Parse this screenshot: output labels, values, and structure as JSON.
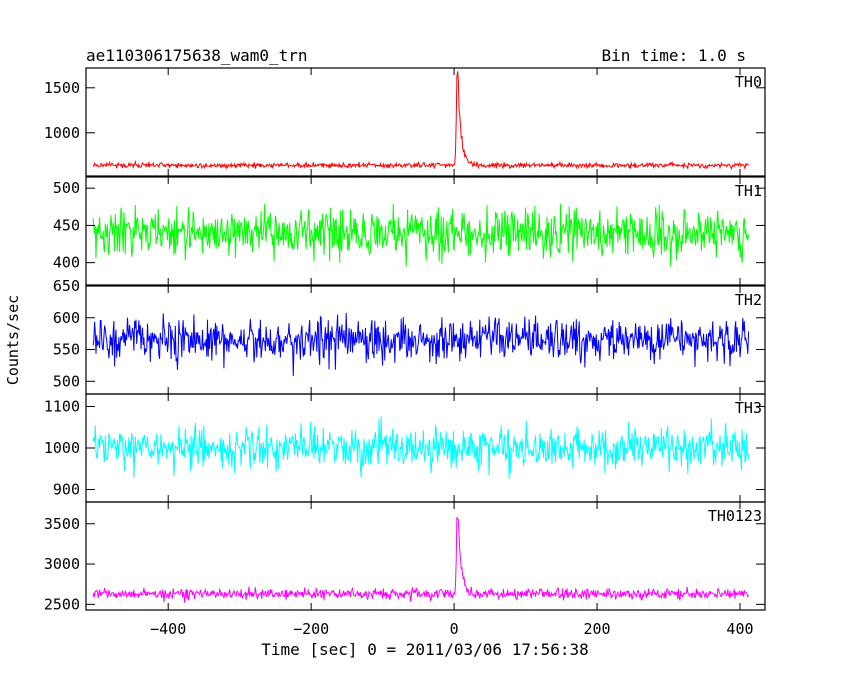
{
  "header": {
    "title": "ae110306175638_wam0_trn",
    "bin_time": "Bin time: 1.0 s"
  },
  "axes": {
    "xlabel": "Time [sec] 0 = 2011/03/06 17:56:38",
    "ylabel": "Counts/sec"
  },
  "chart_data": {
    "type": "line",
    "title": "ae110306175638_wam0_trn",
    "subtitle": "Bin time: 1.0 s",
    "xlabel": "Time [sec] 0 = 2011/03/06 17:56:38",
    "ylabel": "Counts/sec",
    "xlim": [
      -515,
      435
    ],
    "x_range": [
      -505,
      412
    ],
    "x_step": 1,
    "xticks": [
      -400,
      -200,
      0,
      200,
      400
    ],
    "xtick_labels": [
      "−400",
      "−200",
      "0",
      "200",
      "400"
    ],
    "panels": [
      {
        "name": "TH0",
        "color": "#ff0000",
        "ylim": [
          520,
          1720
        ],
        "yticks": [
          1000,
          1500
        ],
        "ytick_labels": [
          "1000",
          "1500"
        ],
        "baseline": 640,
        "noise": 20,
        "peak": {
          "center": 5,
          "height": 1070,
          "width": 4.5
        }
      },
      {
        "name": "TH1",
        "color": "#00ff00",
        "ylim": [
          370,
          515
        ],
        "yticks": [
          400,
          450,
          500
        ],
        "ytick_labels": [
          "400",
          "450",
          "500"
        ],
        "baseline": 440,
        "noise": 22,
        "peak": null
      },
      {
        "name": "TH2",
        "color": "#0000ff",
        "ylim": [
          480,
          650
        ],
        "yticks": [
          500,
          550,
          600,
          650
        ],
        "ytick_labels": [
          "500",
          "550",
          "600",
          "650"
        ],
        "baseline": 565,
        "noise": 24,
        "peak": null
      },
      {
        "name": "TH3",
        "color": "#00ffff",
        "ylim": [
          870,
          1130
        ],
        "yticks": [
          900,
          1000,
          1100
        ],
        "ytick_labels": [
          "900",
          "1000",
          "1100"
        ],
        "baseline": 1000,
        "noise": 35,
        "peak": null
      },
      {
        "name": "TH0123",
        "color": "#ff00ff",
        "ylim": [
          2430,
          3770
        ],
        "yticks": [
          2500,
          3000,
          3500
        ],
        "ytick_labels": [
          "2500",
          "3000",
          "3500"
        ],
        "baseline": 2630,
        "noise": 45,
        "peak": {
          "center": 5,
          "height": 1050,
          "width": 4.5
        }
      }
    ]
  }
}
